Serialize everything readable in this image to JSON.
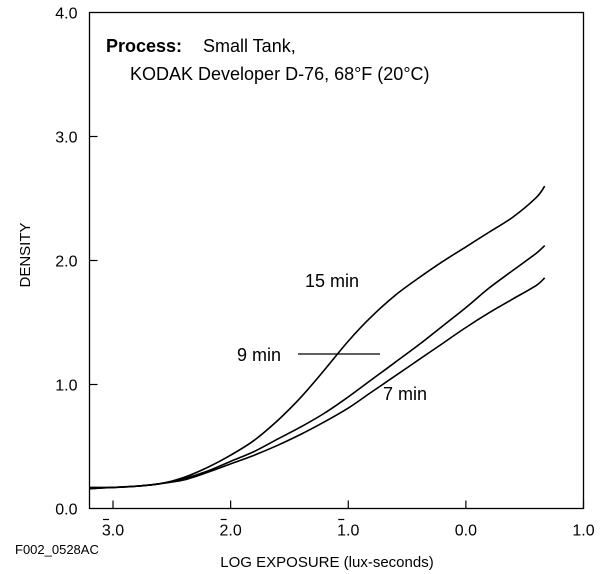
{
  "figure_id": "F002_0528AC",
  "chart_data": {
    "type": "line",
    "xlabel": "LOG EXPOSURE (lux-seconds)",
    "ylabel": "DENSITY",
    "xlim": [
      -3.2,
      1.0
    ],
    "ylim": [
      0.0,
      4.0
    ],
    "x_ticks": [
      -3.0,
      -2.0,
      -1.0,
      0.0,
      1.0
    ],
    "x_tick_labels": [
      "3.0",
      "2.0",
      "1.0",
      "0.0",
      "1.0"
    ],
    "x_tick_bars": [
      true,
      true,
      true,
      false,
      false
    ],
    "y_ticks": [
      0.0,
      1.0,
      2.0,
      3.0,
      4.0
    ],
    "y_tick_labels": [
      "0.0",
      "1.0",
      "2.0",
      "3.0",
      "4.0"
    ],
    "grid": false,
    "annotation": {
      "bold": "Process:",
      "line1": "Small Tank,",
      "line2": "KODAK Developer D-76, 68°F (20°C)"
    },
    "series": [
      {
        "name": "15 min",
        "x": [
          -3.2,
          -3.0,
          -2.8,
          -2.6,
          -2.4,
          -2.2,
          -2.0,
          -1.8,
          -1.6,
          -1.4,
          -1.2,
          -1.0,
          -0.8,
          -0.6,
          -0.4,
          -0.2,
          0.0,
          0.2,
          0.4,
          0.6,
          0.67
        ],
        "values": [
          0.17,
          0.17,
          0.18,
          0.2,
          0.25,
          0.33,
          0.43,
          0.55,
          0.71,
          0.9,
          1.12,
          1.35,
          1.55,
          1.72,
          1.86,
          1.99,
          2.11,
          2.23,
          2.35,
          2.51,
          2.6
        ]
      },
      {
        "name": "9 min",
        "x": [
          -3.2,
          -3.0,
          -2.8,
          -2.6,
          -2.4,
          -2.2,
          -2.0,
          -1.8,
          -1.6,
          -1.4,
          -1.2,
          -1.0,
          -0.8,
          -0.6,
          -0.4,
          -0.2,
          0.0,
          0.2,
          0.4,
          0.6,
          0.67
        ],
        "values": [
          0.16,
          0.17,
          0.18,
          0.2,
          0.24,
          0.3,
          0.38,
          0.46,
          0.56,
          0.66,
          0.77,
          0.9,
          1.04,
          1.18,
          1.32,
          1.47,
          1.62,
          1.78,
          1.92,
          2.06,
          2.12
        ]
      },
      {
        "name": "7 min",
        "x": [
          -3.2,
          -3.0,
          -2.8,
          -2.6,
          -2.4,
          -2.2,
          -2.0,
          -1.8,
          -1.6,
          -1.4,
          -1.2,
          -1.0,
          -0.8,
          -0.6,
          -0.4,
          -0.2,
          0.0,
          0.2,
          0.4,
          0.6,
          0.67
        ],
        "values": [
          0.16,
          0.17,
          0.18,
          0.2,
          0.23,
          0.29,
          0.36,
          0.43,
          0.51,
          0.6,
          0.7,
          0.81,
          0.94,
          1.07,
          1.2,
          1.33,
          1.46,
          1.58,
          1.69,
          1.8,
          1.86
        ]
      }
    ]
  }
}
